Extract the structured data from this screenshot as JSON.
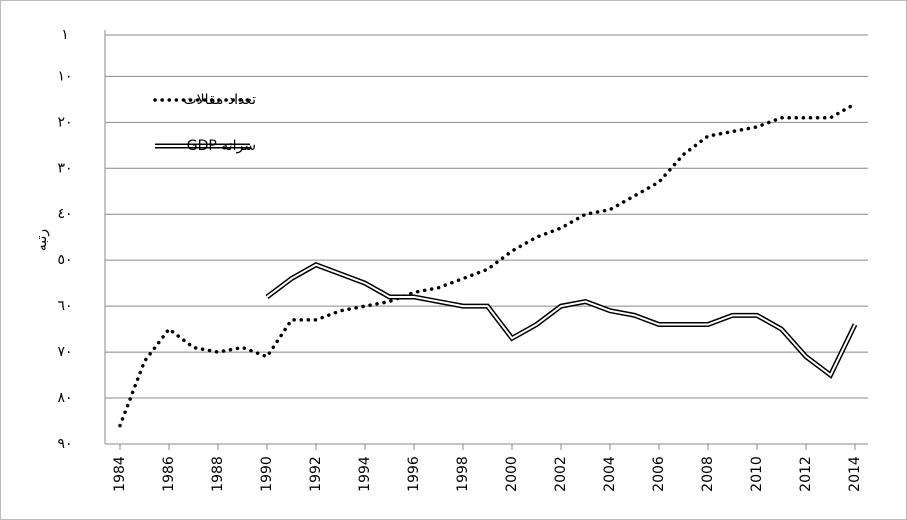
{
  "chart_data": {
    "type": "line",
    "y_label": "رتبه",
    "x": [
      1984,
      1985,
      1986,
      1987,
      1988,
      1989,
      1990,
      1991,
      1992,
      1993,
      1994,
      1995,
      1996,
      1997,
      1998,
      1999,
      2000,
      2001,
      2002,
      2003,
      2004,
      2005,
      2006,
      2007,
      2008,
      2009,
      2010,
      2011,
      2012,
      2013,
      2014
    ],
    "xlim": [
      1984,
      2014
    ],
    "xticks": [
      1984,
      1986,
      1988,
      1990,
      1992,
      1994,
      1996,
      1998,
      2000,
      2002,
      2004,
      2006,
      2008,
      2010,
      2012,
      2014
    ],
    "ylim": [
      90,
      1
    ],
    "yticks": [
      {
        "value": 1,
        "label": "١"
      },
      {
        "value": 10,
        "label": "١٠"
      },
      {
        "value": 20,
        "label": "٢٠"
      },
      {
        "value": 30,
        "label": "٣٠"
      },
      {
        "value": 40,
        "label": "٤٠"
      },
      {
        "value": 50,
        "label": "٥٠"
      },
      {
        "value": 60,
        "label": "٦٠"
      },
      {
        "value": 70,
        "label": "٧٠"
      },
      {
        "value": 80,
        "label": "٨٠"
      },
      {
        "value": 90,
        "label": "٩٠"
      }
    ],
    "grid": true,
    "series": [
      {
        "name": "تعداد مقالات",
        "color": "#000000",
        "style": "dotted",
        "values": [
          86,
          72,
          65,
          69,
          70,
          69,
          71,
          63,
          63,
          61,
          60,
          59,
          57,
          56,
          54,
          52,
          48,
          45,
          43,
          40,
          39,
          36,
          33,
          27,
          23,
          22,
          21,
          19,
          19,
          19,
          16
        ]
      },
      {
        "name": "سرانه GDP",
        "color": "#000000",
        "style": "double",
        "values": [
          null,
          null,
          null,
          null,
          null,
          null,
          58,
          54,
          51,
          53,
          55,
          58,
          58,
          59,
          60,
          60,
          67,
          64,
          60,
          59,
          61,
          62,
          64,
          64,
          64,
          62,
          62,
          65,
          71,
          75,
          64
        ]
      }
    ]
  }
}
